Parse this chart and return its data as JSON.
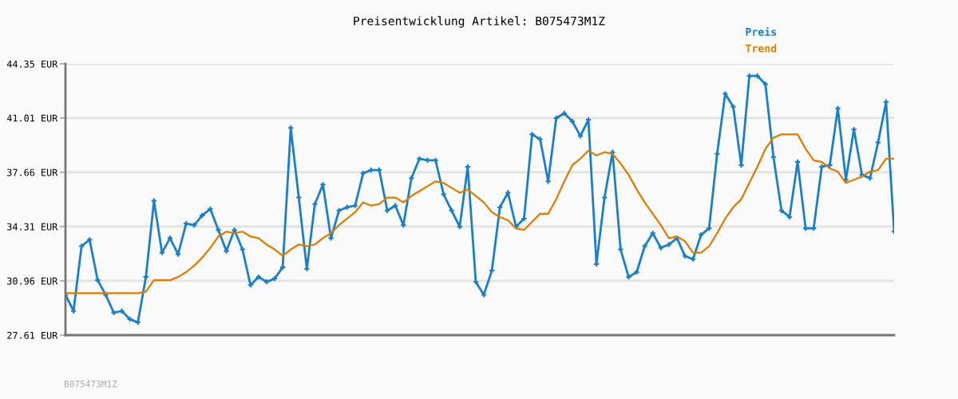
{
  "chart_data": {
    "type": "line",
    "title": "Preisentwicklung Artikel: B075473M1Z",
    "categories": [
      null,
      null,
      null,
      null,
      null,
      null,
      null,
      null,
      null,
      null,
      null,
      null,
      null,
      null,
      null,
      null,
      null,
      null,
      null,
      null,
      null,
      null,
      null,
      null,
      null,
      null,
      null,
      null,
      null,
      null,
      null,
      null,
      null,
      null,
      null,
      null,
      null,
      null,
      null,
      null,
      null,
      null,
      null,
      null,
      null,
      null,
      null,
      null,
      null,
      null,
      null,
      null,
      null,
      null,
      null,
      null,
      null,
      null,
      null,
      null,
      null,
      null,
      null,
      null,
      null,
      null,
      null,
      null,
      null,
      null,
      null,
      null,
      null,
      null,
      null,
      null,
      null,
      null,
      null,
      null,
      null,
      null,
      null,
      null,
      null,
      null,
      null,
      null,
      null,
      null,
      null,
      null,
      null,
      null,
      null,
      null,
      null,
      null,
      null,
      null,
      null,
      null,
      null,
      null
    ],
    "series": [
      {
        "name": "Preis",
        "color": "#1a7fc9",
        "marker": "cross",
        "values": [
          30.1,
          29.1,
          33.1,
          33.5,
          31.0,
          30.1,
          29.0,
          29.1,
          28.6,
          28.4,
          31.2,
          35.9,
          32.7,
          33.6,
          32.6,
          34.5,
          34.4,
          35.0,
          35.4,
          34.1,
          32.8,
          34.1,
          32.9,
          30.7,
          31.2,
          30.9,
          31.1,
          31.8,
          40.4,
          36.1,
          31.7,
          35.7,
          36.9,
          33.6,
          35.3,
          35.5,
          35.6,
          37.6,
          37.8,
          37.8,
          35.3,
          35.6,
          34.4,
          37.3,
          38.5,
          38.4,
          38.4,
          36.3,
          35.3,
          34.3,
          38.0,
          30.9,
          30.1,
          31.6,
          35.5,
          36.4,
          34.3,
          34.8,
          40.0,
          39.7,
          37.1,
          41.0,
          41.3,
          40.8,
          39.9,
          40.9,
          32.0,
          36.1,
          38.9,
          32.9,
          31.2,
          31.5,
          33.1,
          33.9,
          33.0,
          33.2,
          33.6,
          32.5,
          32.3,
          33.8,
          34.2,
          38.8,
          42.5,
          41.7,
          38.1,
          43.6,
          43.6,
          43.1,
          38.6,
          35.3,
          34.9,
          38.3,
          34.2,
          34.2,
          38.0,
          38.1,
          41.6,
          37.2,
          40.3,
          37.5,
          37.3,
          39.5,
          42.0,
          34.0
        ]
      },
      {
        "name": "Trend",
        "color": "#e07b00",
        "marker": "none",
        "values": [
          30.2,
          30.2,
          30.2,
          30.2,
          30.2,
          30.2,
          30.2,
          30.2,
          30.2,
          30.2,
          30.3,
          31.0,
          31.0,
          31.0,
          31.2,
          31.5,
          31.9,
          32.4,
          33.0,
          33.7,
          34.0,
          33.9,
          34.0,
          33.7,
          33.6,
          33.2,
          32.9,
          32.5,
          32.9,
          33.2,
          33.1,
          33.2,
          33.6,
          33.9,
          34.4,
          34.8,
          35.2,
          35.8,
          35.6,
          35.7,
          36.1,
          36.1,
          35.8,
          36.2,
          36.5,
          36.8,
          37.1,
          37.0,
          36.7,
          36.4,
          36.6,
          36.2,
          35.8,
          35.2,
          34.9,
          34.7,
          34.2,
          34.1,
          34.6,
          35.1,
          35.1,
          36.0,
          37.1,
          38.1,
          38.5,
          39.0,
          38.7,
          38.9,
          38.8,
          38.2,
          37.5,
          36.6,
          35.8,
          35.1,
          34.4,
          33.6,
          33.7,
          33.4,
          32.7,
          32.7,
          33.1,
          33.9,
          34.8,
          35.5,
          36.0,
          37.0,
          38.0,
          39.1,
          39.8,
          40.0,
          40.0,
          40.0,
          39.1,
          38.4,
          38.3,
          37.9,
          37.7,
          37.0,
          37.2,
          37.4,
          37.7,
          37.8,
          38.5,
          38.5
        ]
      }
    ],
    "ylim": [
      27.61,
      44.35
    ],
    "yticks": [
      {
        "value": 27.61,
        "label": "27.61 EUR"
      },
      {
        "value": 30.96,
        "label": "30.96 EUR"
      },
      {
        "value": 34.31,
        "label": "34.31 EUR"
      },
      {
        "value": 37.66,
        "label": "37.66 EUR"
      },
      {
        "value": 41.01,
        "label": "41.01 EUR"
      },
      {
        "value": 44.35,
        "label": "44.35 EUR"
      }
    ],
    "tick_labels": "y",
    "grid": "y",
    "legend": "top right",
    "line_style": "solid",
    "annotations": [
      "B075473M1Z"
    ]
  }
}
